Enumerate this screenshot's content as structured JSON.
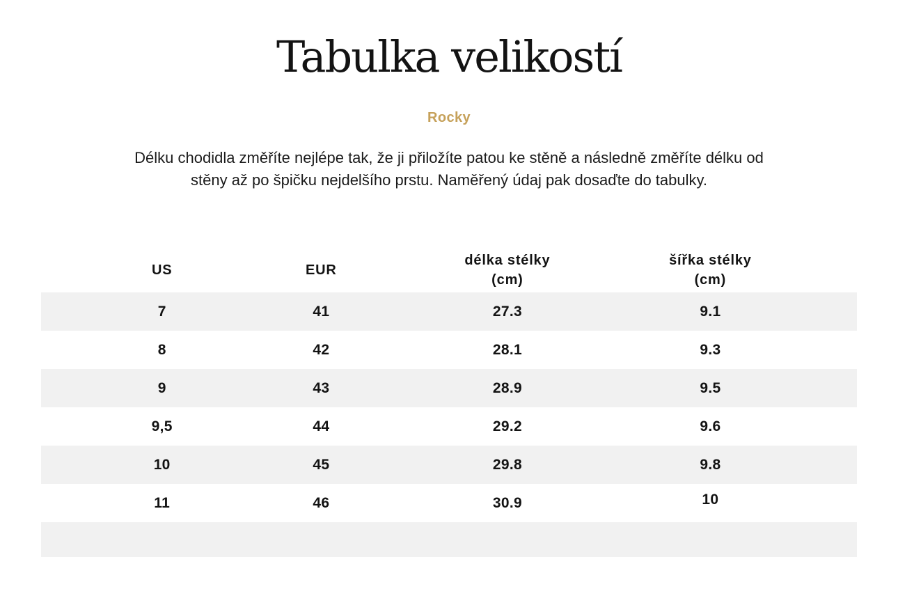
{
  "page": {
    "title": "Tabulka velikostí",
    "brand": "Rocky",
    "description": "Délku chodidla změříte nejlépe tak, že ji přiložíte patou ke stěně a následně změříte délku od stěny až po špičku nejdelšího prstu. Naměřený údaj pak dosaďte do tabulky."
  },
  "colors": {
    "accent_gold": "#c6a15a",
    "row_stripe": "#f1f1f1",
    "text": "#131313"
  },
  "table": {
    "headers": [
      {
        "label": "US",
        "unit": ""
      },
      {
        "label": "EUR",
        "unit": ""
      },
      {
        "label": "délka stélky",
        "unit": "(cm)"
      },
      {
        "label": "šířka stélky",
        "unit": "(cm)"
      }
    ],
    "rows": [
      [
        "7",
        "41",
        "27.3",
        "9.1"
      ],
      [
        "8",
        "42",
        "28.1",
        "9.3"
      ],
      [
        "9",
        "43",
        "28.9",
        "9.5"
      ],
      [
        "9,5",
        "44",
        "29.2",
        "9.6"
      ],
      [
        "10",
        "45",
        "29.8",
        "9.8"
      ],
      [
        "11",
        "46",
        "30.9",
        "10"
      ]
    ]
  }
}
